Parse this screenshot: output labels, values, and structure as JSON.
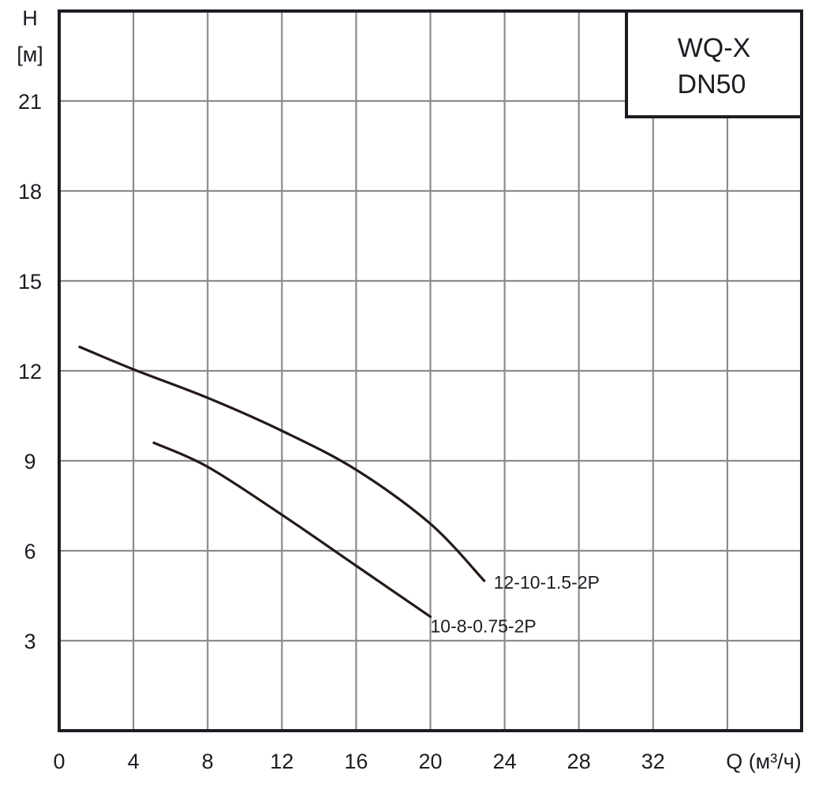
{
  "chart_data": {
    "type": "line",
    "title": "WQ-X DN50",
    "title_lines": [
      "WQ-X",
      "DN50"
    ],
    "xlabel": "Q (м³/ч)",
    "ylabel": "H [м]",
    "ylabel_lines": [
      "H",
      "[м]"
    ],
    "xlim": [
      0,
      40
    ],
    "ylim": [
      0,
      24
    ],
    "x_ticks": [
      0,
      4,
      8,
      12,
      16,
      20,
      24,
      28,
      32
    ],
    "x_tick_labels": [
      "0",
      "4",
      "8",
      "12",
      "16",
      "20",
      "24",
      "28",
      "32"
    ],
    "y_ticks": [
      3,
      6,
      9,
      12,
      15,
      18,
      21
    ],
    "y_tick_labels": [
      "3",
      "6",
      "9",
      "12",
      "15",
      "18",
      "21"
    ],
    "grid": true,
    "legend": "inline labels at curve ends",
    "series": [
      {
        "name": "12-10-1.5-2P",
        "x": [
          1.1,
          4,
          8,
          12,
          16,
          20,
          22.9
        ],
        "y": [
          12.8,
          12.05,
          11.1,
          10.0,
          8.7,
          6.9,
          5.0
        ]
      },
      {
        "name": "10-8-0.75-2P",
        "x": [
          5.1,
          8,
          12,
          16,
          20
        ],
        "y": [
          9.6,
          8.8,
          7.2,
          5.5,
          3.8
        ]
      }
    ]
  },
  "colors": {
    "curve": "#231a17",
    "frame": "#1a1d22",
    "grid": "#8c8c8c",
    "background": "#ffffff"
  }
}
